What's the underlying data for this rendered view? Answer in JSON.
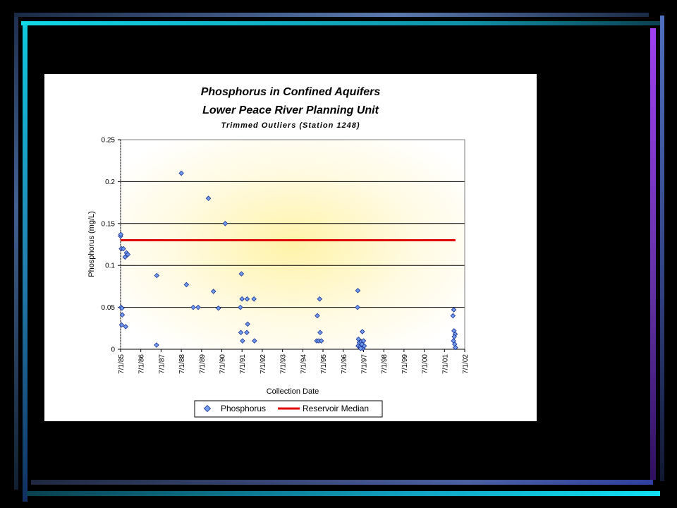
{
  "chart_data": {
    "type": "scatter",
    "title": "Phosphorus in Confined Aquifers",
    "subtitle": "Lower Peace River Planning Unit",
    "subtitle2": "Trimmed Outliers (Station 1248)",
    "xlabel": "Collection Date",
    "ylabel": "Phosphorus (mg/L)",
    "ylim": [
      0,
      0.25
    ],
    "yticks": [
      "0",
      "0.05",
      "0.1",
      "0.15",
      "0.2",
      "0.25"
    ],
    "xticks": [
      "7/1/85",
      "7/1/86",
      "7/1/87",
      "7/1/88",
      "7/1/89",
      "7/1/90",
      "7/1/91",
      "7/1/92",
      "7/1/93",
      "7/1/94",
      "7/1/95",
      "7/1/96",
      "7/1/97",
      "7/1/98",
      "7/1/99",
      "7/1/00",
      "7/1/01",
      "7/1/02"
    ],
    "grid": "horizontal",
    "legend_position": "bottom",
    "legend": [
      "Phosphorus",
      "Reservoir Median"
    ],
    "colors": {
      "points": "#6f9cf0",
      "points_edge": "#1c2e8c",
      "median": "#e00000"
    },
    "series": [
      {
        "name": "Phosphorus",
        "points": [
          [
            "7/1/85",
            0.135
          ],
          [
            "7/5/85",
            0.137
          ],
          [
            "7/15/85",
            0.12
          ],
          [
            "8/20/85",
            0.12
          ],
          [
            "9/20/85",
            0.11
          ],
          [
            "10/15/85",
            0.115
          ],
          [
            "11/10/85",
            0.113
          ],
          [
            "7/10/85",
            0.05
          ],
          [
            "7/25/85",
            0.049
          ],
          [
            "8/1/85",
            0.041
          ],
          [
            "7/20/85",
            0.029
          ],
          [
            "10/1/85",
            0.027
          ],
          [
            "4/15/87",
            0.088
          ],
          [
            "4/10/87",
            0.005
          ],
          [
            "7/1/88",
            0.21
          ],
          [
            "10/1/88",
            0.077
          ],
          [
            "2/1/89",
            0.05
          ],
          [
            "5/1/89",
            0.05
          ],
          [
            "11/1/89",
            0.18
          ],
          [
            "2/1/90",
            0.069
          ],
          [
            "5/1/90",
            0.049
          ],
          [
            "9/1/90",
            0.15
          ],
          [
            "6/20/91",
            0.09
          ],
          [
            "7/1/91",
            0.06
          ],
          [
            "6/1/91",
            0.05
          ],
          [
            "6/10/91",
            0.02
          ],
          [
            "7/10/91",
            0.01
          ],
          [
            "10/1/91",
            0.06
          ],
          [
            "10/10/91",
            0.03
          ],
          [
            "9/25/91",
            0.02
          ],
          [
            "2/1/92",
            0.06
          ],
          [
            "2/10/92",
            0.01
          ],
          [
            "3/20/95",
            0.04
          ],
          [
            "3/10/95",
            0.01
          ],
          [
            "4/15/95",
            0.01
          ],
          [
            "5/1/95",
            0.06
          ],
          [
            "5/10/95",
            0.02
          ],
          [
            "6/1/95",
            0.01
          ],
          [
            "3/20/97",
            0.07
          ],
          [
            "3/15/97",
            0.05
          ],
          [
            "4/1/97",
            0.012
          ],
          [
            "4/15/97",
            0.008
          ],
          [
            "3/25/97",
            0.004
          ],
          [
            "5/1/97",
            0.003
          ],
          [
            "5/20/97",
            0.009
          ],
          [
            "6/10/97",
            0.021
          ],
          [
            "6/20/97",
            0.001
          ],
          [
            "7/1/97",
            0.01
          ],
          [
            "7/15/97",
            0.004
          ],
          [
            "5/10/97",
            0.001
          ],
          [
            "6/1/97",
            0.006
          ],
          [
            "12/15/01",
            0.047
          ],
          [
            "12/1/01",
            0.04
          ],
          [
            "12/20/01",
            0.022
          ],
          [
            "1/10/02",
            0.018
          ],
          [
            "12/10/01",
            0.01
          ],
          [
            "1/1/02",
            0.006
          ],
          [
            "1/15/02",
            0.002
          ],
          [
            "12/25/01",
            0.015
          ]
        ]
      },
      {
        "name": "Reservoir Median",
        "x": [
          "7/1/85",
          "1/15/02"
        ],
        "y": [
          0.13,
          0.13
        ]
      }
    ]
  }
}
